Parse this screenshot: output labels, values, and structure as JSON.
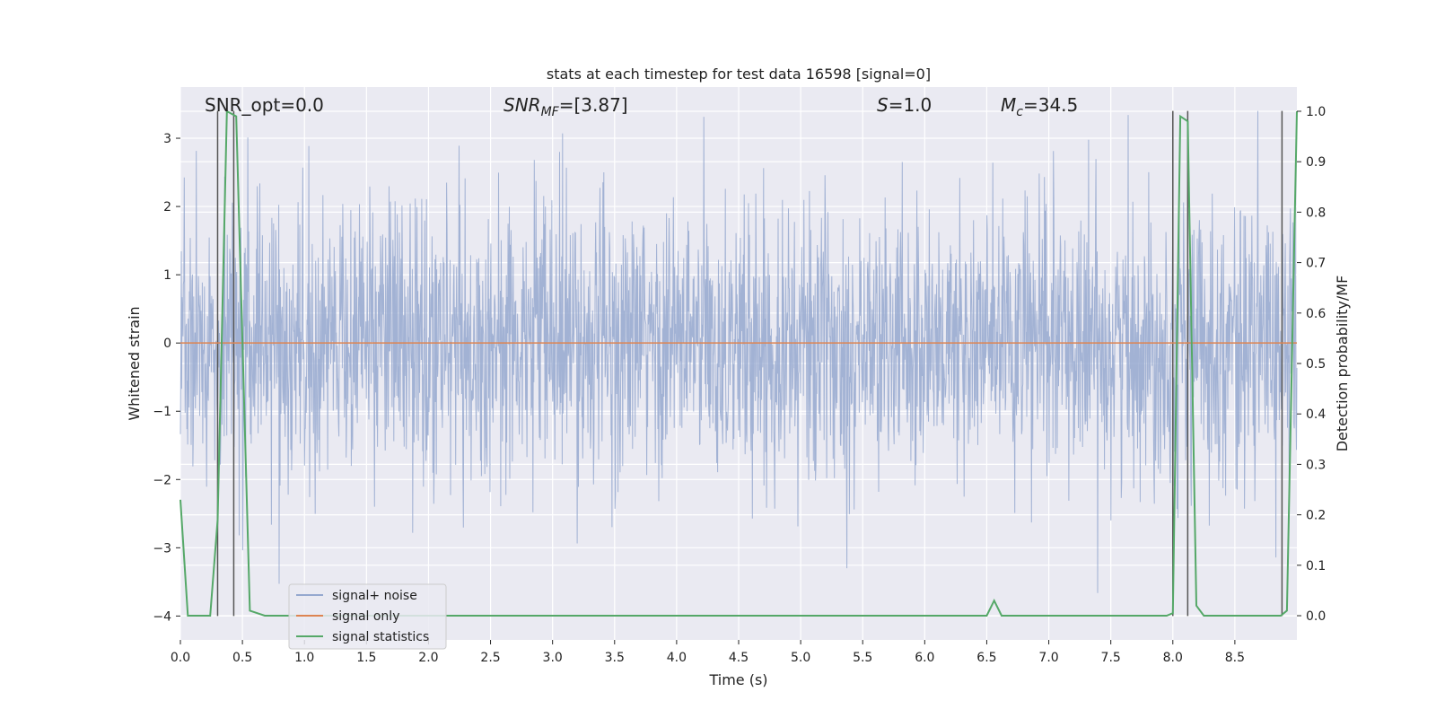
{
  "chart_data": {
    "type": "line",
    "title": "stats at each timestep for test data 16598 [signal=0]",
    "xlabel": "Time (s)",
    "ylabel": "Whitened strain",
    "ylabel_right": "Detection probability/MF",
    "xlim": [
      0.0,
      9.0
    ],
    "ylim": [
      -4.35,
      3.75
    ],
    "ylim_right": [
      -0.048,
      1.048
    ],
    "x_ticks": [
      "0.0",
      "0.5",
      "1.0",
      "1.5",
      "2.0",
      "2.5",
      "3.0",
      "3.5",
      "4.0",
      "4.5",
      "5.0",
      "5.5",
      "6.0",
      "6.5",
      "7.0",
      "7.5",
      "8.0",
      "8.5"
    ],
    "x_tick_values": [
      0.0,
      0.5,
      1.0,
      1.5,
      2.0,
      2.5,
      3.0,
      3.5,
      4.0,
      4.5,
      5.0,
      5.5,
      6.0,
      6.5,
      7.0,
      7.5,
      8.0,
      8.5
    ],
    "y_ticks": [
      "3",
      "2",
      "1",
      "0",
      "−1",
      "−2",
      "−3",
      "−4"
    ],
    "y_tick_values": [
      3,
      2,
      1,
      0,
      -1,
      -2,
      -3,
      -4
    ],
    "y_right_ticks": [
      "1.0",
      "0.9",
      "0.8",
      "0.7",
      "0.6",
      "0.5",
      "0.4",
      "0.3",
      "0.2",
      "0.1",
      "0.0"
    ],
    "y_right_tick_values": [
      1.0,
      0.9,
      0.8,
      0.7,
      0.6,
      0.5,
      0.4,
      0.3,
      0.2,
      0.1,
      0.0
    ],
    "grid": true,
    "legend_position": "lower-left",
    "annotations": {
      "snr_opt": "SNR_opt=0.0",
      "snr_mf_main": "SNR",
      "snr_mf_sub": "MF",
      "snr_mf_rest": "=[3.87]",
      "s_main": "S",
      "s_rest": "=1.0",
      "mc_main": "M",
      "mc_sub": "c",
      "mc_rest": "=34.5"
    },
    "series": [
      {
        "name": "signal+ noise",
        "color": "#95a8cf",
        "axis": "left",
        "description_points": {
          "x": [
            0.0,
            9.0
          ],
          "amplitude_range": [
            -4.0,
            3.4
          ]
        }
      },
      {
        "name": "signal only",
        "color": "#dd8452",
        "axis": "left",
        "x": [
          0.0,
          9.0
        ],
        "y": [
          0.0,
          0.0
        ]
      },
      {
        "name": "signal statistics",
        "color": "#55a868",
        "axis": "right",
        "x": [
          0.0,
          0.06,
          0.24,
          0.3,
          0.375,
          0.45,
          0.56,
          0.68,
          0.75,
          6.5,
          6.56,
          6.62,
          7.95,
          8.0,
          8.06,
          8.12,
          8.19,
          8.25,
          8.87,
          8.92,
          9.0
        ],
        "y": [
          0.23,
          0.0,
          0.0,
          0.19,
          1.0,
          0.99,
          0.01,
          0.0,
          0.0,
          0.0,
          0.03,
          0.0,
          0.0,
          0.005,
          0.99,
          0.98,
          0.02,
          0.0,
          0.0,
          0.01,
          1.0
        ]
      }
    ],
    "vertical_markers_x": [
      0.3,
      0.43,
      8.0,
      8.12,
      8.88
    ]
  }
}
